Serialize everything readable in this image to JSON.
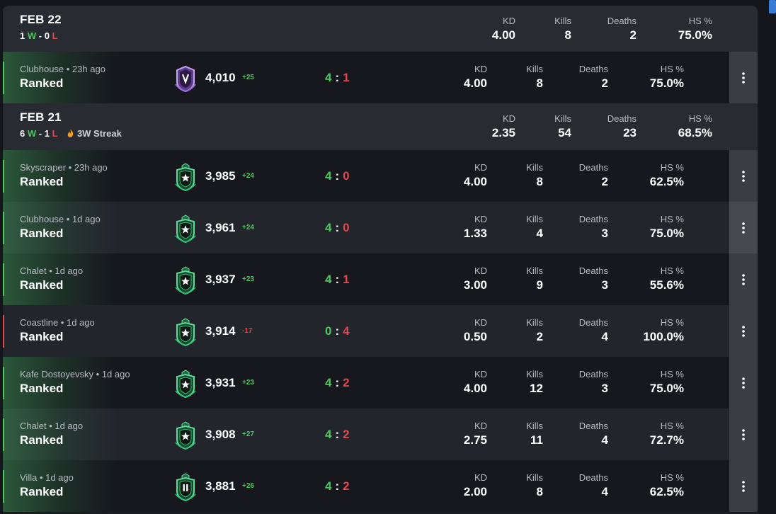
{
  "labels": {
    "kd": "KD",
    "kills": "Kills",
    "deaths": "Deaths",
    "hs": "HS %"
  },
  "days": [
    {
      "date": "FEB 22",
      "wins": "1",
      "w_letter": "W",
      "dash": "-",
      "losses": "0",
      "l_letter": "L",
      "streak": "",
      "kd": "4.00",
      "kills": "8",
      "deaths": "2",
      "hs": "75.0%",
      "matches": [
        {
          "map_line": "Clubhouse • 23h ago",
          "mode": "Ranked",
          "rank_icon": "rank-v-purple-icon",
          "rp": "4,010",
          "rp_delta": "+25",
          "delta_sign": "pos",
          "score_us": "4",
          "score_them": "1",
          "result": "win",
          "kd": "4.00",
          "kills": "8",
          "deaths": "2",
          "hs": "75.0%"
        }
      ]
    },
    {
      "date": "FEB 21",
      "wins": "6",
      "w_letter": "W",
      "dash": "-",
      "losses": "1",
      "l_letter": "L",
      "streak": "3W Streak",
      "kd": "2.35",
      "kills": "54",
      "deaths": "23",
      "hs": "68.5%",
      "matches": [
        {
          "map_line": "Skyscraper • 23h ago",
          "mode": "Ranked",
          "rank_icon": "rank-emerald-star-icon",
          "rp": "3,985",
          "rp_delta": "+24",
          "delta_sign": "pos",
          "score_us": "4",
          "score_them": "0",
          "result": "win",
          "kd": "4.00",
          "kills": "8",
          "deaths": "2",
          "hs": "62.5%"
        },
        {
          "map_line": "Clubhouse • 1d ago",
          "mode": "Ranked",
          "rank_icon": "rank-emerald-star-icon",
          "rp": "3,961",
          "rp_delta": "+24",
          "delta_sign": "pos",
          "score_us": "4",
          "score_them": "0",
          "result": "win",
          "kd": "1.33",
          "kills": "4",
          "deaths": "3",
          "hs": "75.0%"
        },
        {
          "map_line": "Chalet • 1d ago",
          "mode": "Ranked",
          "rank_icon": "rank-emerald-star-icon",
          "rp": "3,937",
          "rp_delta": "+23",
          "delta_sign": "pos",
          "score_us": "4",
          "score_them": "1",
          "result": "win",
          "kd": "3.00",
          "kills": "9",
          "deaths": "3",
          "hs": "55.6%"
        },
        {
          "map_line": "Coastline • 1d ago",
          "mode": "Ranked",
          "rank_icon": "rank-emerald-star-icon",
          "rp": "3,914",
          "rp_delta": "-17",
          "delta_sign": "neg",
          "score_us": "0",
          "score_them": "4",
          "result": "loss",
          "kd": "0.50",
          "kills": "2",
          "deaths": "4",
          "hs": "100.0%"
        },
        {
          "map_line": "Kafe Dostoyevsky • 1d ago",
          "mode": "Ranked",
          "rank_icon": "rank-emerald-star-icon",
          "rp": "3,931",
          "rp_delta": "+23",
          "delta_sign": "pos",
          "score_us": "4",
          "score_them": "2",
          "result": "win",
          "kd": "4.00",
          "kills": "12",
          "deaths": "3",
          "hs": "75.0%"
        },
        {
          "map_line": "Chalet • 1d ago",
          "mode": "Ranked",
          "rank_icon": "rank-emerald-star-icon",
          "rp": "3,908",
          "rp_delta": "+27",
          "delta_sign": "pos",
          "score_us": "4",
          "score_them": "2",
          "result": "win",
          "kd": "2.75",
          "kills": "11",
          "deaths": "4",
          "hs": "72.7%"
        },
        {
          "map_line": "Villa • 1d ago",
          "mode": "Ranked",
          "rank_icon": "rank-emerald-ii-icon",
          "rp": "3,881",
          "rp_delta": "+26",
          "delta_sign": "pos",
          "score_us": "4",
          "score_them": "2",
          "result": "win",
          "kd": "2.00",
          "kills": "8",
          "deaths": "4",
          "hs": "62.5%"
        }
      ]
    }
  ],
  "colors": {
    "win": "#4cc85e",
    "loss": "#e0484f",
    "emerald": "#2fbf71",
    "purple": "#9a6bd8"
  },
  "icons": {
    "menu": "kebab-menu-icon",
    "streak": "flame-icon"
  }
}
